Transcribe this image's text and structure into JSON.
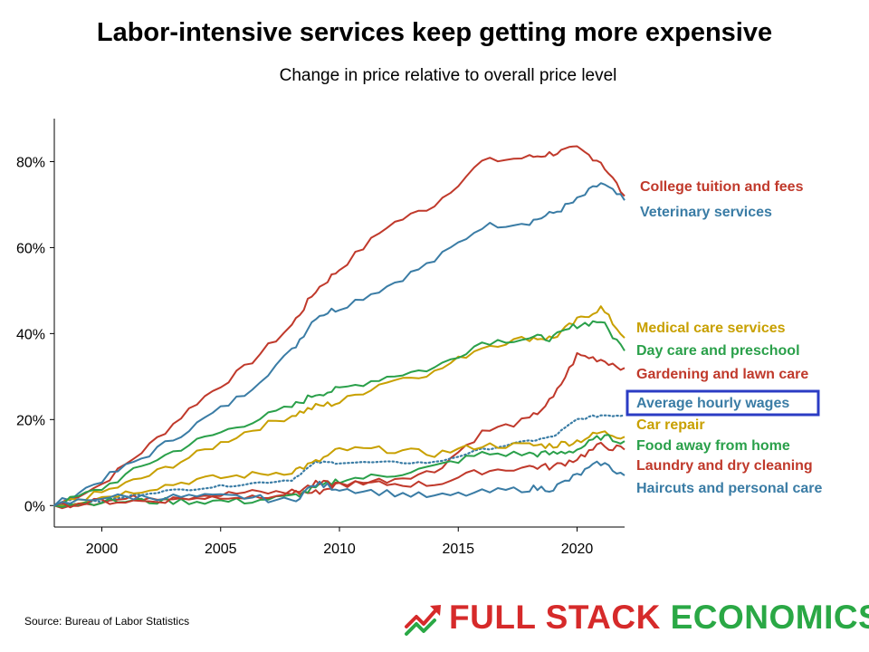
{
  "title": "Labor-intensive services keep getting more expensive",
  "subtitle": "Change in price relative to overall price level",
  "source": "Source: Bureau of Labor Statistics",
  "brand": {
    "word1": "FULL STACK",
    "word2": "ECONOMICS"
  },
  "colors": {
    "red": "#c0392b",
    "blue": "#3a7ca5",
    "gold": "#c8a000",
    "green": "#2aa04a",
    "highlight_box": "#2b3cc4"
  },
  "chart_data": {
    "type": "line",
    "title": "Labor-intensive services keep getting more expensive",
    "subtitle": "Change in price relative to overall price level",
    "xlabel": "",
    "ylabel": "",
    "x": [
      1998,
      2000,
      2002,
      2004,
      2006,
      2008,
      2009,
      2010,
      2012,
      2014,
      2016,
      2018,
      2019,
      2020,
      2021,
      2022
    ],
    "xlim": [
      1998,
      2022
    ],
    "ylim": [
      -5,
      90
    ],
    "x_ticks": [
      "2000",
      "2005",
      "2010",
      "2015",
      "2020"
    ],
    "x_tick_values": [
      2000,
      2005,
      2010,
      2015,
      2020
    ],
    "y_ticks": [
      "0%",
      "20%",
      "40%",
      "60%",
      "80%"
    ],
    "y_tick_values": [
      0,
      20,
      40,
      60,
      80
    ],
    "grid": false,
    "legend": "direct labels right of the plot",
    "series": [
      {
        "name": "College tuition and fees",
        "color": "#c0392b",
        "style": "solid",
        "values": [
          0,
          5,
          14,
          24,
          32,
          42,
          50,
          55,
          65,
          70,
          80,
          81,
          82,
          83,
          80,
          72
        ]
      },
      {
        "name": "Veterinary services",
        "color": "#3a7ca5",
        "style": "solid",
        "values": [
          0,
          6,
          12,
          19,
          26,
          36,
          44,
          46,
          51,
          57,
          65,
          66,
          68,
          71,
          75,
          71
        ]
      },
      {
        "name": "Medical care services",
        "color": "#c8a000",
        "style": "solid",
        "values": [
          0,
          3,
          7,
          12,
          17,
          21,
          23,
          24,
          29,
          31,
          37,
          39,
          39,
          43,
          46,
          39
        ]
      },
      {
        "name": "Day care and preschool",
        "color": "#2aa04a",
        "style": "solid",
        "values": [
          0,
          4,
          10,
          15,
          19,
          23,
          26,
          27,
          30,
          32,
          38,
          39,
          39,
          42,
          43,
          36
        ]
      },
      {
        "name": "Gardening and lawn care",
        "color": "#c0392b",
        "style": "solid",
        "values": [
          0,
          1,
          2,
          2,
          3,
          3,
          3,
          5,
          6,
          8,
          17,
          20,
          25,
          35,
          34,
          32
        ]
      },
      {
        "name": "Average hourly wages",
        "color": "#3a7ca5",
        "style": "dotted",
        "values": [
          0,
          1,
          3,
          4,
          5,
          6,
          10,
          10,
          10,
          10,
          13,
          15,
          16,
          20,
          21,
          21
        ]
      },
      {
        "name": "Car repair",
        "color": "#c8a000",
        "style": "solid",
        "values": [
          0,
          2,
          4,
          6,
          7,
          8,
          10,
          13,
          13,
          12,
          14,
          14,
          14,
          15,
          17,
          16
        ]
      },
      {
        "name": "Food away from home",
        "color": "#2aa04a",
        "style": "solid",
        "values": [
          0,
          1,
          1,
          1,
          1,
          2,
          4,
          6,
          7,
          9,
          12,
          12,
          12,
          13,
          16,
          15
        ]
      },
      {
        "name": "Laundry and dry cleaning",
        "color": "#c0392b",
        "style": "solid",
        "values": [
          0,
          1,
          1,
          2,
          2,
          3,
          5,
          5,
          5,
          5,
          8,
          9,
          9,
          11,
          14,
          13
        ]
      },
      {
        "name": "Haircuts and personal care",
        "color": "#3a7ca5",
        "style": "solid",
        "values": [
          0,
          2,
          2,
          2,
          2,
          1,
          5,
          4,
          3,
          2,
          3,
          4,
          4,
          7,
          10,
          7
        ]
      }
    ],
    "highlighted_series": "Average hourly wages"
  }
}
